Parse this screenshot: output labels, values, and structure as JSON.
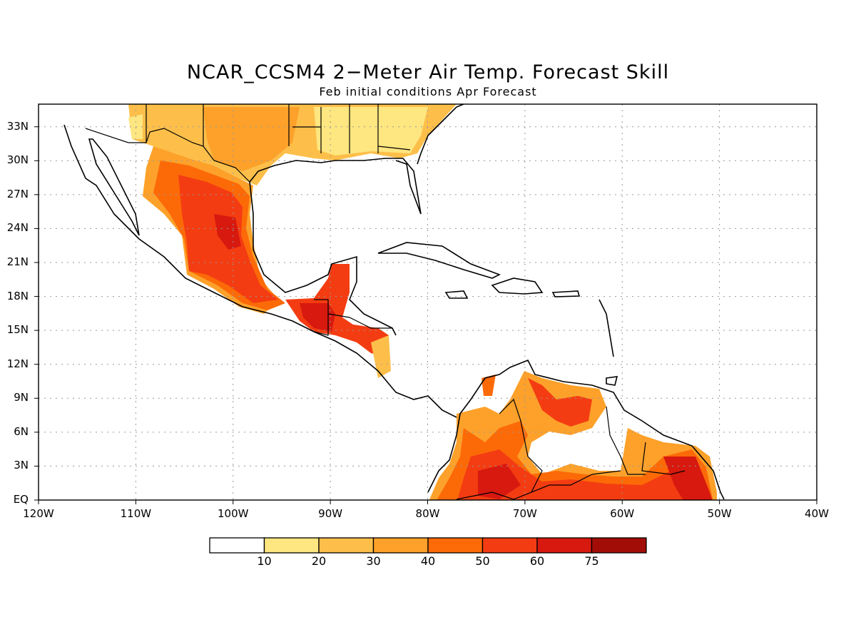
{
  "title": "NCAR_CCSM4 2−Meter Air Temp. Forecast Skill",
  "subtitle": "Feb initial conditions  Apr Forecast",
  "map": {
    "lon_range": [
      -120,
      -40
    ],
    "lat_range": [
      0,
      35
    ],
    "lat_ticks": [
      {
        "value": 33,
        "label": "33N"
      },
      {
        "value": 30,
        "label": "30N"
      },
      {
        "value": 27,
        "label": "27N"
      },
      {
        "value": 24,
        "label": "24N"
      },
      {
        "value": 21,
        "label": "21N"
      },
      {
        "value": 18,
        "label": "18N"
      },
      {
        "value": 15,
        "label": "15N"
      },
      {
        "value": 12,
        "label": "12N"
      },
      {
        "value": 9,
        "label": "9N"
      },
      {
        "value": 6,
        "label": "6N"
      },
      {
        "value": 3,
        "label": "3N"
      },
      {
        "value": 0,
        "label": "EQ"
      }
    ],
    "lon_ticks": [
      {
        "value": -120,
        "label": "120W"
      },
      {
        "value": -110,
        "label": "110W"
      },
      {
        "value": -100,
        "label": "100W"
      },
      {
        "value": -90,
        "label": "90W"
      },
      {
        "value": -80,
        "label": "80W"
      },
      {
        "value": -70,
        "label": "70W"
      },
      {
        "value": -60,
        "label": "60W"
      },
      {
        "value": -50,
        "label": "50W"
      },
      {
        "value": -40,
        "label": "40W"
      }
    ],
    "gridlines": "dotted"
  },
  "colorbar": {
    "labels": [
      "10",
      "20",
      "30",
      "40",
      "50",
      "60",
      "75"
    ],
    "colors": [
      "#ffffff",
      "#fee680",
      "#fdbf4a",
      "#fda12a",
      "#fc6a08",
      "#f43c12",
      "#d7190f",
      "#a30d08"
    ]
  }
}
